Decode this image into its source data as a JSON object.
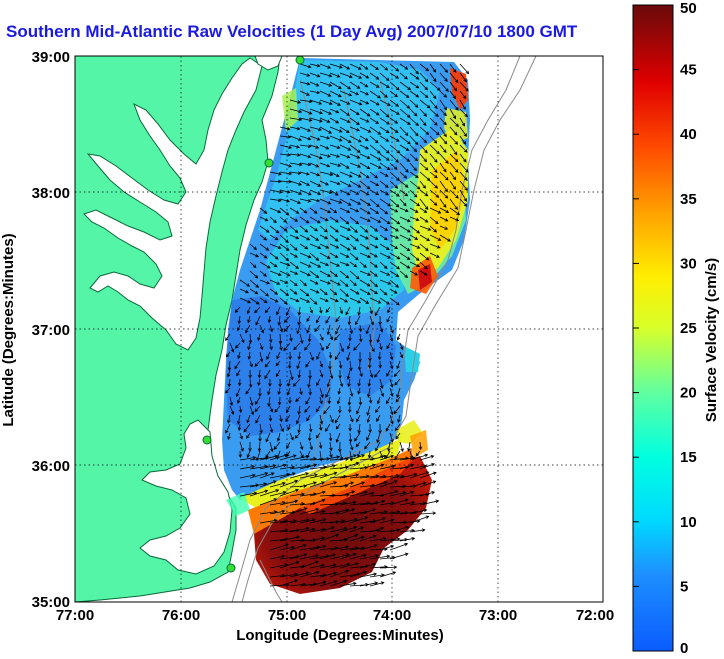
{
  "title": "Southern Mid-Atlantic Raw Velocities (1 Day Avg) 2007/07/10 1800 GMT",
  "axes": {
    "xlabel": "Longitude (Degrees:Minutes)",
    "ylabel": "Latitude (Degrees:Minutes)",
    "x_ticks": [
      "77:00",
      "76:00",
      "75:00",
      "74:00",
      "73:00",
      "72:00"
    ],
    "y_ticks": [
      "39:00",
      "38:00",
      "37:00",
      "36:00",
      "35:00"
    ],
    "lon_range": [
      -77,
      -72
    ],
    "lat_range": [
      35,
      39
    ],
    "grid": "dotted"
  },
  "colorbar": {
    "label": "Surface Velocity (cm/s)",
    "ticks": [
      "50",
      "45",
      "40",
      "35",
      "30",
      "25",
      "20",
      "15",
      "10",
      "5",
      "0"
    ],
    "range": [
      0,
      50
    ],
    "colormap": "jet"
  },
  "colors": {
    "land": "#55f5a8",
    "coastline": "#0a6a3a",
    "bathymetry": "#8a8a8a",
    "station": "#33dd33",
    "title": "#1a1ae0"
  }
}
